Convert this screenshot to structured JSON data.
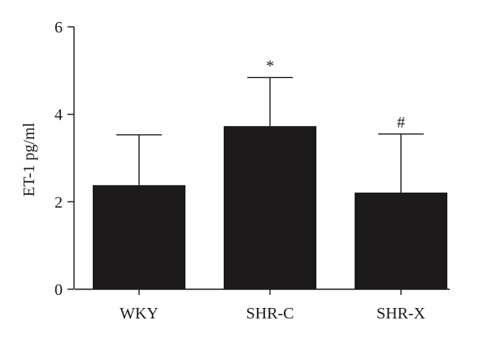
{
  "chart_data": {
    "type": "bar",
    "title": "",
    "xlabel": "",
    "ylabel": "ET-1 pg/ml",
    "ylim": [
      0,
      6
    ],
    "yticks": [
      0,
      2,
      4,
      6
    ],
    "ytick_labels": [
      "0",
      "2",
      "4",
      "6"
    ],
    "grid": false,
    "legend": "none",
    "categories": [
      "WKY",
      "SHR-C",
      "SHR-X"
    ],
    "values": [
      2.38,
      3.73,
      2.21
    ],
    "error_upper": [
      3.53,
      4.84,
      3.55
    ],
    "annotations": [
      "",
      "*",
      "#"
    ],
    "bar_color": "#1c1a1b"
  }
}
